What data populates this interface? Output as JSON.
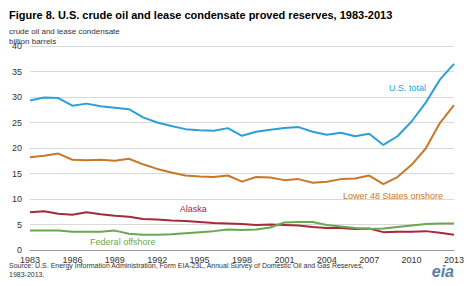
{
  "chart_data": {
    "type": "line",
    "title": "Figure 8. U.S. crude oil and lease condensate proved reserves, 1983-2013",
    "y_label": "crude oil and lease condensate\nbillion barrels",
    "source": "Source: U.S. Energy Information Administration, Form EIA-23L, Annual Survey of Domestic Oil and Gas Reserves,\n1983-2013.",
    "logo": "eia",
    "x": [
      1983,
      1984,
      1985,
      1986,
      1987,
      1988,
      1989,
      1990,
      1991,
      1992,
      1993,
      1994,
      1995,
      1996,
      1997,
      1998,
      1999,
      2000,
      2001,
      2002,
      2003,
      2004,
      2005,
      2006,
      2007,
      2008,
      2009,
      2010,
      2011,
      2012,
      2013
    ],
    "series": [
      {
        "name": "U.S. total",
        "color": "#2aa0d8",
        "values": [
          29.3,
          29.9,
          29.8,
          28.3,
          28.7,
          28.2,
          27.9,
          27.6,
          26.0,
          25.0,
          24.3,
          23.7,
          23.5,
          23.4,
          23.9,
          22.4,
          23.2,
          23.6,
          23.9,
          24.1,
          23.2,
          22.6,
          23.0,
          22.3,
          22.8,
          20.6,
          22.3,
          25.2,
          28.9,
          33.4,
          36.5
        ]
      },
      {
        "name": "Lower 48 States onshore",
        "color": "#c87828",
        "values": [
          18.2,
          18.5,
          18.9,
          17.7,
          17.6,
          17.7,
          17.5,
          17.9,
          16.8,
          15.9,
          15.2,
          14.6,
          14.4,
          14.3,
          14.6,
          13.4,
          14.3,
          14.2,
          13.7,
          13.9,
          13.2,
          13.4,
          13.9,
          14.0,
          14.6,
          12.9,
          14.3,
          16.7,
          19.9,
          24.9,
          28.4
        ]
      },
      {
        "name": "Alaska",
        "color": "#a52a3c",
        "values": [
          7.4,
          7.6,
          7.1,
          6.9,
          7.4,
          7.0,
          6.7,
          6.5,
          6.1,
          6.0,
          5.8,
          5.7,
          5.5,
          5.3,
          5.2,
          5.1,
          4.9,
          5.0,
          4.9,
          4.8,
          4.5,
          4.3,
          4.3,
          4.1,
          4.2,
          3.5,
          3.6,
          3.6,
          3.7,
          3.4,
          3.0
        ]
      },
      {
        "name": "Federal offshore",
        "color": "#6aa84f",
        "values": [
          3.8,
          3.8,
          3.8,
          3.6,
          3.6,
          3.6,
          3.8,
          3.2,
          3.0,
          3.0,
          3.1,
          3.3,
          3.5,
          3.7,
          4.0,
          3.9,
          4.0,
          4.4,
          5.4,
          5.5,
          5.5,
          4.9,
          4.6,
          4.3,
          4.1,
          4.2,
          4.5,
          4.8,
          5.1,
          5.2,
          5.2
        ]
      }
    ],
    "xlim": [
      1983,
      2013
    ],
    "xticks": [
      1983,
      1986,
      1989,
      1992,
      1995,
      1998,
      2001,
      2004,
      2007,
      2010,
      2013
    ],
    "ylim": [
      0,
      40
    ],
    "yticks": [
      0,
      5,
      10,
      15,
      20,
      25,
      30,
      35,
      40
    ],
    "grid": true
  }
}
